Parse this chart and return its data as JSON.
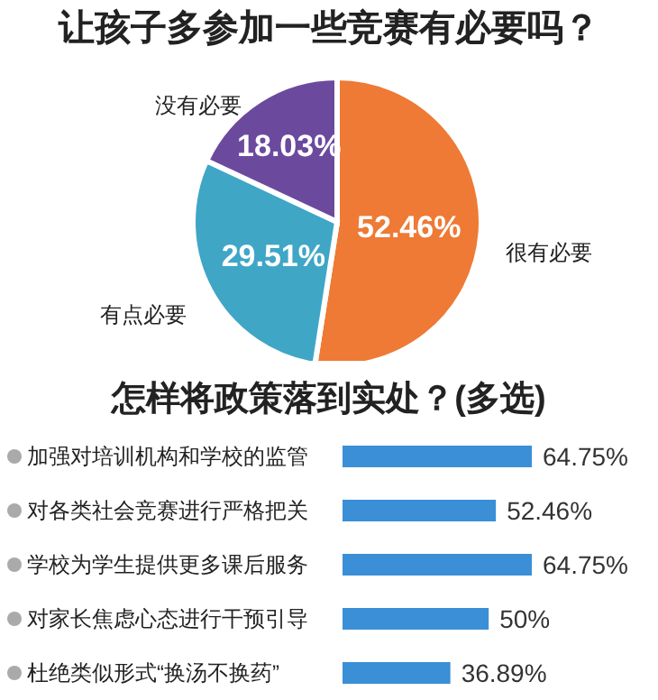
{
  "chart_data": [
    {
      "type": "pie",
      "title": "让孩子多参加一些竞赛有必要吗？",
      "categories": [
        "很有必要",
        "有点必要",
        "没有必要"
      ],
      "values": [
        52.46,
        29.51,
        18.03
      ],
      "value_labels": [
        "52.46%",
        "29.51%",
        "18.03%"
      ],
      "colors": [
        "#ee7a35",
        "#3fa6c6",
        "#6b4a9e"
      ]
    },
    {
      "type": "bar",
      "orientation": "horizontal",
      "title": "怎样将政策落到实处？(多选)",
      "categories": [
        "加强对培训机构和学校的监管",
        "对各类社会竞赛进行严格把关",
        "学校为学生提供更多课后服务",
        "对家长焦虑心态进行干预引导",
        "杜绝类似形式“换汤不换药”"
      ],
      "values": [
        64.75,
        52.46,
        64.75,
        50,
        36.89
      ],
      "value_labels": [
        "64.75%",
        "52.46%",
        "64.75%",
        "50%",
        "36.89%"
      ],
      "color": "#3a8fd6"
    }
  ]
}
